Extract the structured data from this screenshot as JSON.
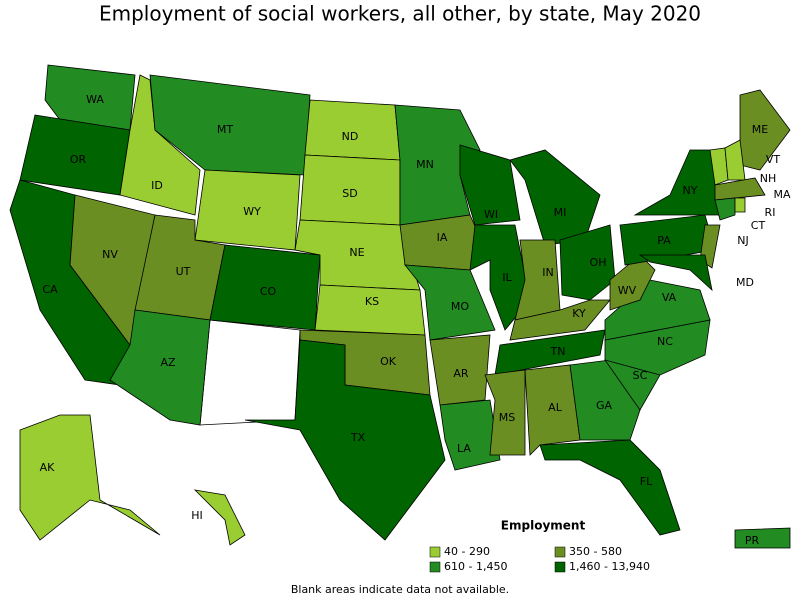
{
  "title": "Employment of social workers, all other, by state, May 2020",
  "states": [
    {
      "label": "WA",
      "color": "#228b22"
    },
    {
      "label": "OR",
      "color": "#006400"
    },
    {
      "label": "CA",
      "color": "#006400"
    },
    {
      "label": "NV",
      "color": "#6b8e23"
    },
    {
      "label": "ID",
      "color": "#9acd32"
    },
    {
      "label": "MT",
      "color": "#228b22"
    },
    {
      "label": "WY",
      "color": "#9acd32"
    },
    {
      "label": "UT",
      "color": "#6b8e23"
    },
    {
      "label": "CO",
      "color": "#006400"
    },
    {
      "label": "AZ",
      "color": "#228b22"
    },
    {
      "label": "ND",
      "color": "#9acd32"
    },
    {
      "label": "SD",
      "color": "#9acd32"
    },
    {
      "label": "NE",
      "color": "#9acd32"
    },
    {
      "label": "KS",
      "color": "#9acd32"
    },
    {
      "label": "OK",
      "color": "#6b8e23"
    },
    {
      "label": "TX",
      "color": "#006400"
    },
    {
      "label": "MN",
      "color": "#228b22"
    },
    {
      "label": "IA",
      "color": "#6b8e23"
    },
    {
      "label": "MO",
      "color": "#228b22"
    },
    {
      "label": "AR",
      "color": "#6b8e23"
    },
    {
      "label": "LA",
      "color": "#228b22"
    },
    {
      "label": "WI",
      "color": "#006400"
    },
    {
      "label": "IL",
      "color": "#006400"
    },
    {
      "label": "MI",
      "color": "#006400"
    },
    {
      "label": "IN",
      "color": "#6b8e23"
    },
    {
      "label": "OH",
      "color": "#006400"
    },
    {
      "label": "KY",
      "color": "#6b8e23"
    },
    {
      "label": "TN",
      "color": "#006400"
    },
    {
      "label": "MS",
      "color": "#6b8e23"
    },
    {
      "label": "AL",
      "color": "#6b8e23"
    },
    {
      "label": "GA",
      "color": "#228b22"
    },
    {
      "label": "FL",
      "color": "#006400"
    },
    {
      "label": "SC",
      "color": "#228b22"
    },
    {
      "label": "NC",
      "color": "#228b22"
    },
    {
      "label": "VA",
      "color": "#228b22"
    },
    {
      "label": "WV",
      "color": "#6b8e23"
    },
    {
      "label": "PA",
      "color": "#006400"
    },
    {
      "label": "NY",
      "color": "#006400"
    },
    {
      "label": "NJ",
      "color": "#6b8e23"
    },
    {
      "label": "MD",
      "color": "#006400"
    },
    {
      "label": "ME",
      "color": "#6b8e23"
    },
    {
      "label": "VT",
      "color": "#9acd32"
    },
    {
      "label": "NH",
      "color": "#9acd32"
    },
    {
      "label": "MA",
      "color": "#6b8e23"
    },
    {
      "label": "CT",
      "color": "#228b22"
    },
    {
      "label": "RI",
      "color": "#9acd32"
    },
    {
      "label": "AK",
      "color": "#9acd32"
    },
    {
      "label": "HI",
      "color": "#9acd32"
    },
    {
      "label": "PR",
      "color": "#228b22"
    }
  ],
  "legend": {
    "title": "Employment",
    "items": [
      {
        "label": "40 - 290",
        "color": "#9acd32"
      },
      {
        "label": "350 - 580",
        "color": "#6b8e23"
      },
      {
        "label": "610 - 1,450",
        "color": "#228b22"
      },
      {
        "label": "1,460 - 13,940",
        "color": "#006400"
      }
    ]
  },
  "footnote": "Blank areas indicate data not available."
}
